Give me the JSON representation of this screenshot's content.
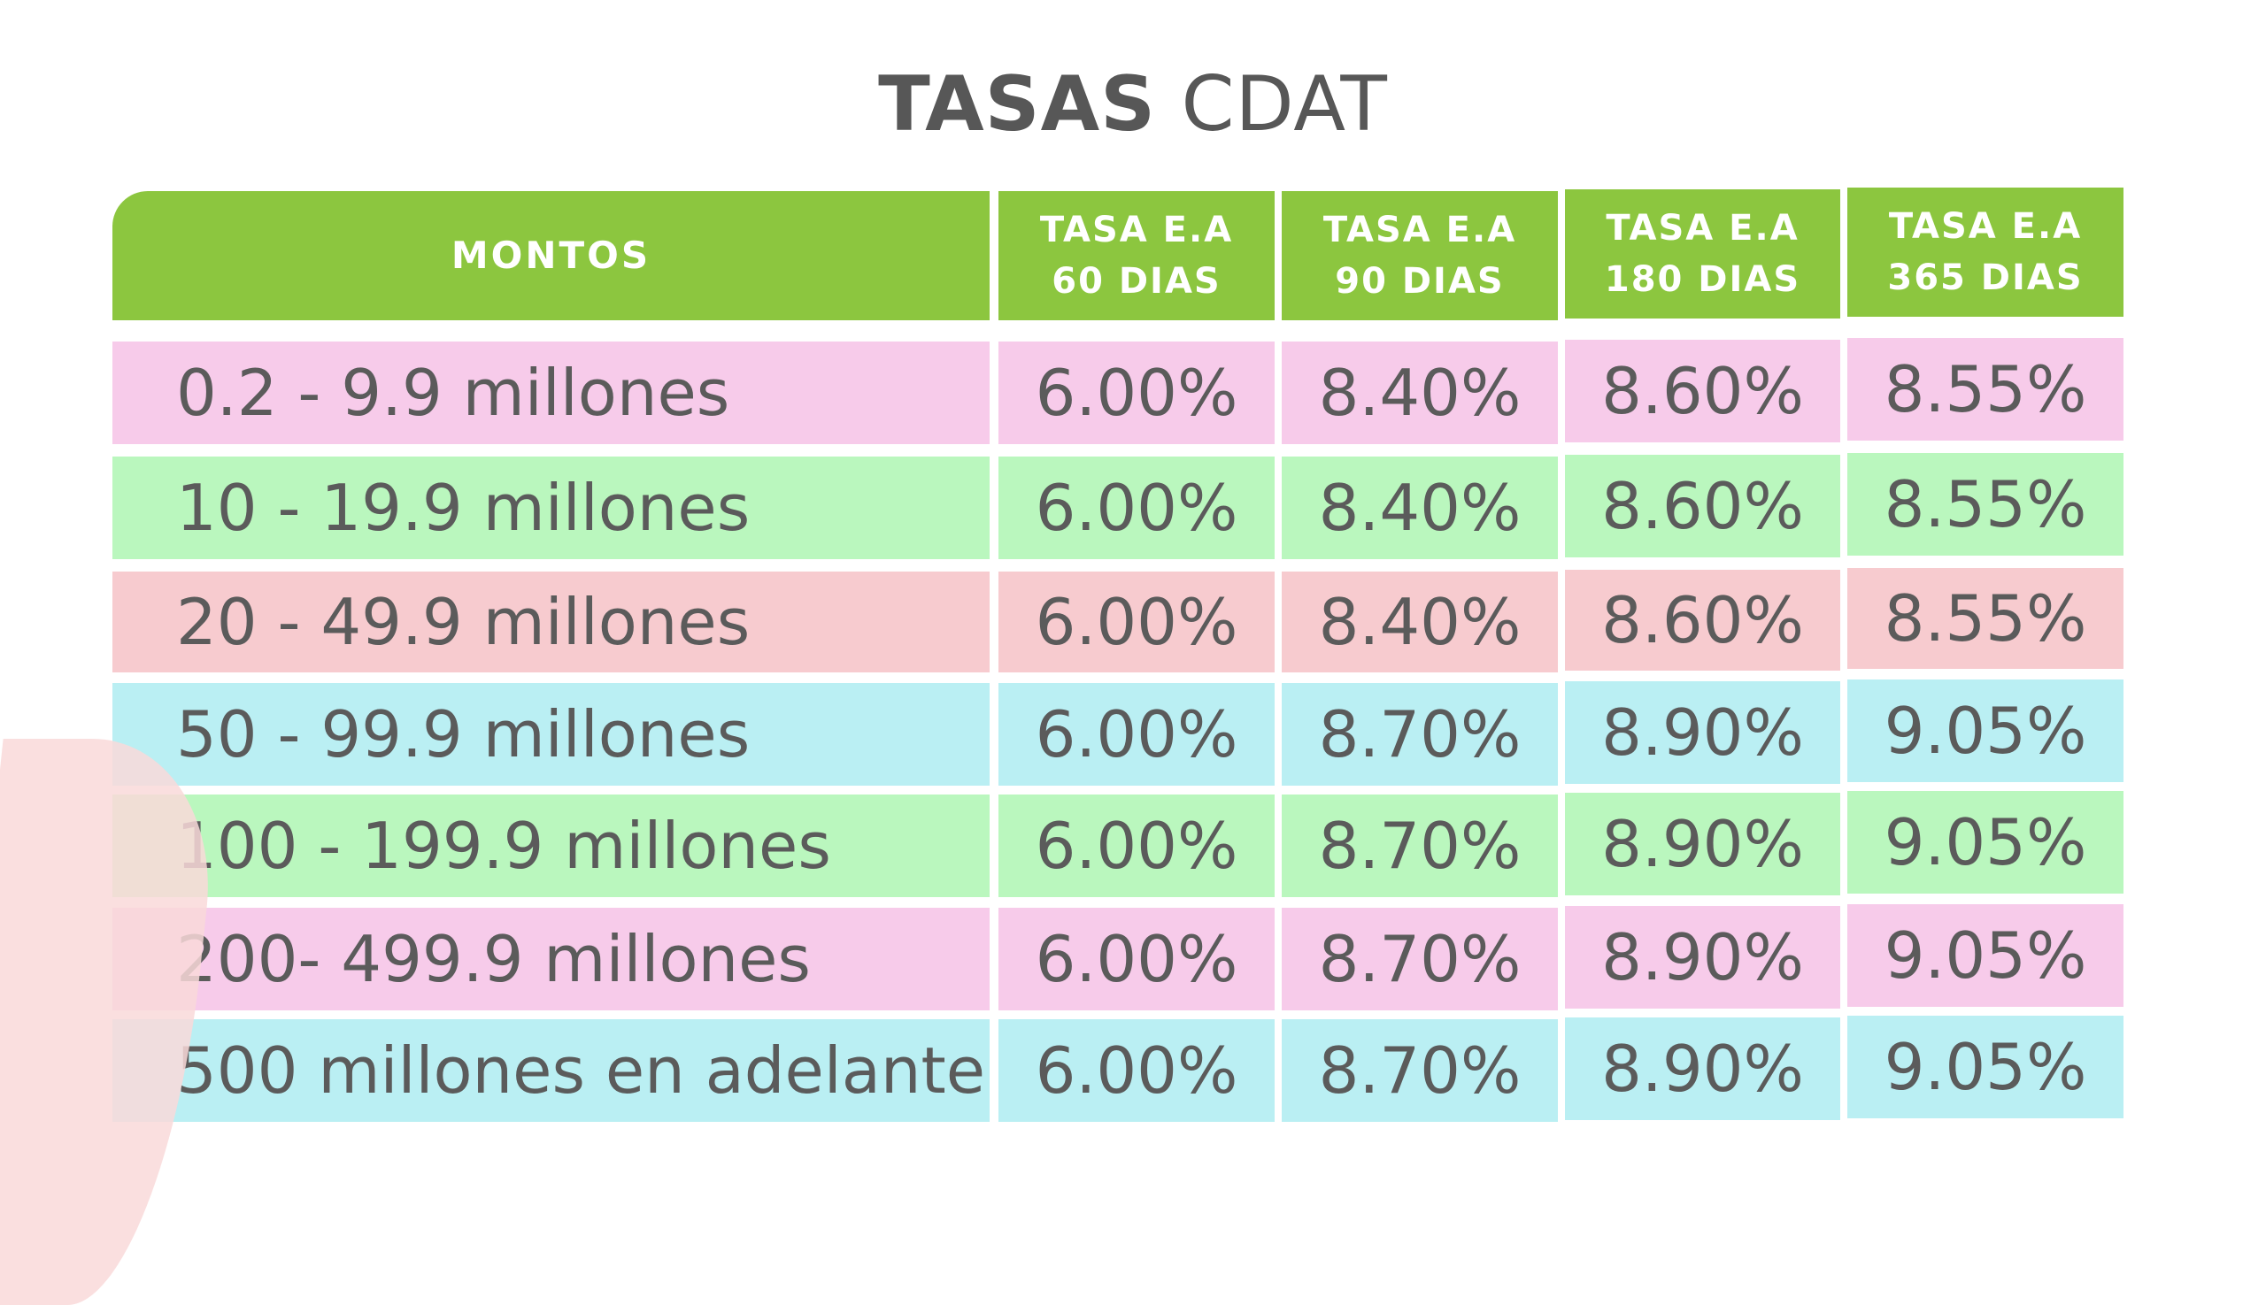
{
  "title": {
    "bold": "TASAS",
    "light": "CDAT"
  },
  "header": {
    "montos": "MONTOS",
    "columns": [
      {
        "line1": "TASA E.A",
        "line2": "60 DIAS"
      },
      {
        "line1": "TASA E.A",
        "line2": "90 DIAS"
      },
      {
        "line1": "TASA E.A",
        "line2": "180 DIAS"
      },
      {
        "line1": "TASA E.A",
        "line2": "365 DIAS"
      }
    ]
  },
  "colors": {
    "header": "#8cc63f",
    "pink": "#f7cbea",
    "green": "#baf7be",
    "salmon": "#f7cbcf",
    "cyan": "#baeff3",
    "text": "#5b5b5b"
  },
  "rows": [
    {
      "monto": "0.2 - 9.9 millones",
      "color": "pink",
      "rates": [
        "6.00%",
        "8.40%",
        "8.60%",
        "8.55%"
      ]
    },
    {
      "monto": "10 - 19.9 millones",
      "color": "green",
      "rates": [
        "6.00%",
        "8.40%",
        "8.60%",
        "8.55%"
      ]
    },
    {
      "monto": "20 - 49.9 millones",
      "color": "salmon",
      "rates": [
        "6.00%",
        "8.40%",
        "8.60%",
        "8.55%"
      ]
    },
    {
      "monto": "50 - 99.9 millones",
      "color": "cyan",
      "rates": [
        "6.00%",
        "8.70%",
        "8.90%",
        "9.05%"
      ]
    },
    {
      "monto": "100 - 199.9 millones",
      "color": "green",
      "rates": [
        "6.00%",
        "8.70%",
        "8.90%",
        "9.05%"
      ]
    },
    {
      "monto": "200- 499.9 millones",
      "color": "pink",
      "rates": [
        "6.00%",
        "8.70%",
        "8.90%",
        "9.05%"
      ]
    },
    {
      "monto": "500 millones en adelante",
      "color": "cyan",
      "rates": [
        "6.00%",
        "8.70%",
        "8.90%",
        "9.05%"
      ]
    }
  ]
}
